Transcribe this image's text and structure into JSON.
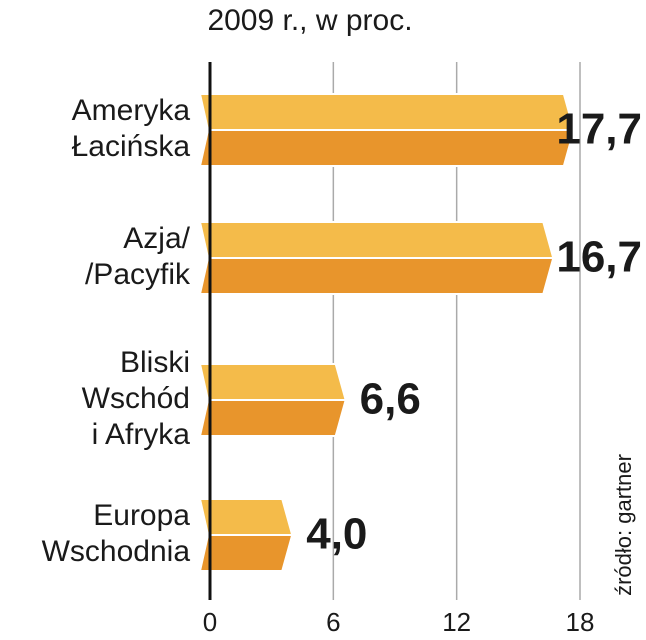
{
  "chart_data": {
    "type": "hbar",
    "title": "2009 r., w proc.",
    "categories": [
      [
        "Ameryka",
        "Łacińska"
      ],
      [
        "Azja/",
        "/Pacyfik"
      ],
      [
        "Bliski",
        "Wschód",
        "i Afryka"
      ],
      [
        "Europa",
        "Wschodnia"
      ]
    ],
    "values": [
      17.7,
      16.7,
      6.6,
      4.0
    ],
    "value_labels": [
      "17,7",
      "16,7",
      "6,6",
      "4,0"
    ],
    "colors": [
      "#f4bb4a",
      "#e8952c"
    ],
    "xlim": [
      0,
      18
    ],
    "xticks": [
      0,
      6,
      12,
      18
    ],
    "grid": true,
    "source": "źródło: gartner"
  }
}
